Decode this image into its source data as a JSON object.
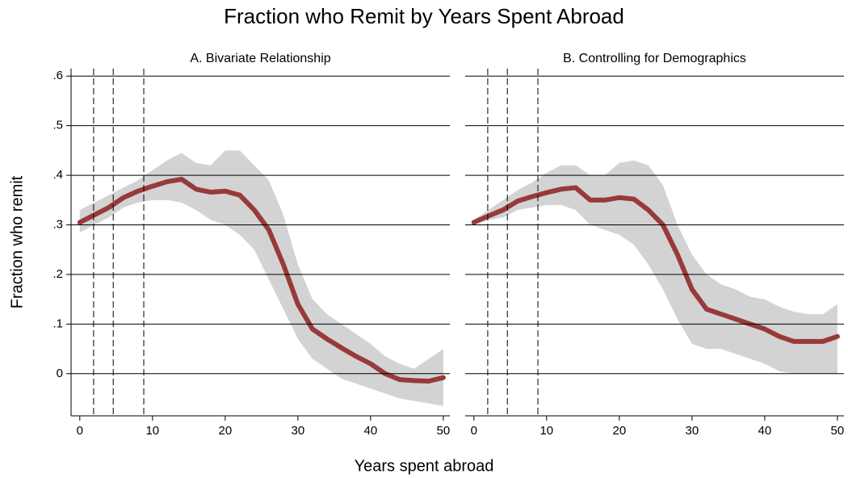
{
  "title": "Fraction who Remit by Years Spent Abroad",
  "x_label": "Years spent abroad",
  "y_label": "Fraction who remit",
  "chart_data": [
    {
      "type": "line",
      "title": "A. Bivariate Relationship",
      "x": [
        0,
        2,
        4,
        6,
        8,
        10,
        12,
        14,
        16,
        18,
        20,
        22,
        24,
        26,
        28,
        30,
        32,
        34,
        36,
        38,
        40,
        42,
        44,
        46,
        48,
        50
      ],
      "values": [
        0.305,
        0.32,
        0.335,
        0.355,
        0.368,
        0.378,
        0.387,
        0.392,
        0.372,
        0.366,
        0.368,
        0.36,
        0.33,
        0.29,
        0.22,
        0.14,
        0.09,
        0.07,
        0.052,
        0.035,
        0.02,
        0.0,
        -0.012,
        -0.014,
        -0.015,
        -0.008
      ],
      "upper": [
        0.33,
        0.345,
        0.36,
        0.375,
        0.39,
        0.41,
        0.43,
        0.445,
        0.425,
        0.42,
        0.45,
        0.45,
        0.42,
        0.39,
        0.32,
        0.22,
        0.15,
        0.12,
        0.1,
        0.08,
        0.06,
        0.035,
        0.02,
        0.01,
        0.03,
        0.05
      ],
      "lower": [
        0.285,
        0.3,
        0.315,
        0.335,
        0.345,
        0.35,
        0.35,
        0.345,
        0.33,
        0.31,
        0.3,
        0.28,
        0.25,
        0.19,
        0.13,
        0.07,
        0.03,
        0.01,
        -0.01,
        -0.02,
        -0.03,
        -0.04,
        -0.05,
        -0.055,
        -0.06,
        -0.065
      ],
      "color": "#983a3a",
      "band_color": "#d3d3d3",
      "vlines": [
        1.9,
        4.6,
        8.8
      ],
      "xlim": [
        -1.2,
        50.9
      ],
      "xticks": [
        0,
        10,
        20,
        30,
        40,
        50
      ],
      "ylim": [
        -0.085,
        0.615
      ],
      "yticks": [
        0,
        {
          "value": 0.1,
          "label": ".1"
        },
        {
          "value": 0.2,
          "label": ".2"
        },
        {
          "value": 0.3,
          "label": ".3"
        },
        {
          "value": 0.4,
          "label": ".4"
        },
        {
          "value": 0.5,
          "label": ".5"
        },
        {
          "value": 0.6,
          "label": ".6"
        }
      ],
      "grid": true
    },
    {
      "type": "line",
      "title": "B. Controlling for Demographics",
      "x": [
        0,
        2,
        4,
        6,
        8,
        10,
        12,
        14,
        16,
        18,
        20,
        22,
        24,
        26,
        28,
        30,
        32,
        34,
        36,
        38,
        40,
        42,
        44,
        46,
        48,
        50
      ],
      "values": [
        0.305,
        0.318,
        0.33,
        0.348,
        0.357,
        0.365,
        0.372,
        0.375,
        0.35,
        0.35,
        0.355,
        0.352,
        0.33,
        0.3,
        0.24,
        0.17,
        0.13,
        0.12,
        0.11,
        0.1,
        0.09,
        0.075,
        0.065,
        0.065,
        0.065,
        0.075
      ],
      "upper": [
        0.31,
        0.33,
        0.35,
        0.37,
        0.385,
        0.405,
        0.42,
        0.42,
        0.4,
        0.4,
        0.425,
        0.43,
        0.42,
        0.38,
        0.3,
        0.24,
        0.2,
        0.18,
        0.17,
        0.155,
        0.15,
        0.135,
        0.125,
        0.12,
        0.12,
        0.14
      ],
      "lower": [
        0.3,
        0.31,
        0.315,
        0.33,
        0.335,
        0.34,
        0.34,
        0.33,
        0.3,
        0.29,
        0.28,
        0.26,
        0.22,
        0.17,
        0.11,
        0.06,
        0.05,
        0.05,
        0.04,
        0.03,
        0.02,
        0.005,
        0,
        0,
        0,
        0
      ],
      "color": "#983a3a",
      "band_color": "#d3d3d3",
      "vlines": [
        1.9,
        4.6,
        8.8
      ],
      "xlim": [
        -1.2,
        50.9
      ],
      "xticks": [
        0,
        10,
        20,
        30,
        40,
        50
      ],
      "grid": true
    }
  ]
}
